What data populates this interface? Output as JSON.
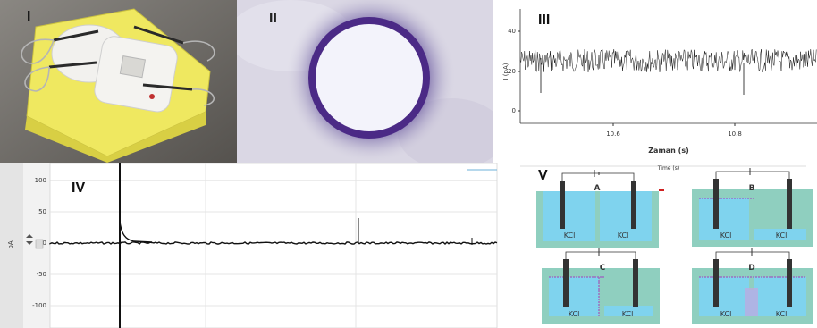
{
  "panels": {
    "I": {
      "label": "I"
    },
    "II": {
      "label": "II"
    },
    "III": {
      "label": "III",
      "ylabel": "I (pA)",
      "xlabel": "Zaman (s)",
      "yticks": [
        "40",
        "20",
        "0"
      ],
      "xticks": [
        "10.6",
        "10.8"
      ]
    },
    "IV": {
      "label": "IV",
      "yticks": [
        "100",
        "50",
        "0",
        "-50",
        "-100"
      ],
      "side_label": "pA"
    },
    "V": {
      "label": "V",
      "header": "Time (s)",
      "cells": [
        {
          "letter": "A",
          "left": "KCl",
          "right": "KCl"
        },
        {
          "letter": "B",
          "left": "KCl",
          "right": "KCl"
        },
        {
          "letter": "C",
          "left": "KCl",
          "right": "KCl"
        },
        {
          "letter": "D",
          "left": "KCl",
          "right": "KCl"
        }
      ]
    }
  },
  "colors": {
    "kcl_liquid": "#7fd3ee",
    "chamber": "#8fcfbf",
    "ring": "#5a2a8a",
    "sponge": "#efe860"
  }
}
